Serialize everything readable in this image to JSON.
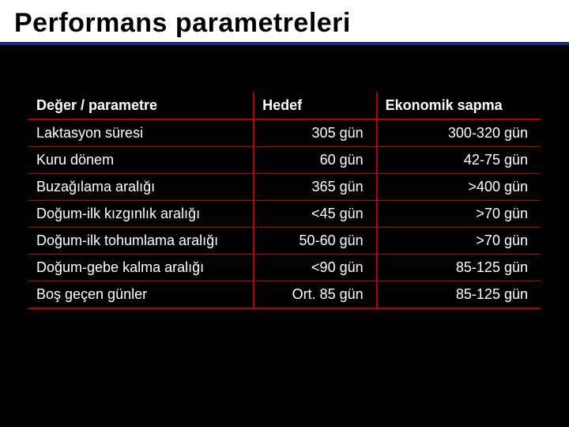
{
  "slide": {
    "title": "Performans parametreleri",
    "title_color": "#000000",
    "title_fontsize": 34,
    "underline_color": "#1a2b8a",
    "background_color": "#000000"
  },
  "table": {
    "border_color": "#c00000",
    "text_color": "#ffffff",
    "header_fontsize": 18,
    "cell_fontsize": 18,
    "columns": [
      {
        "label": "Değer / parametre",
        "align": "left",
        "width_pct": 44
      },
      {
        "label": "Hedef",
        "align": "right",
        "width_pct": 24
      },
      {
        "label": "Ekonomik sapma",
        "align": "right",
        "width_pct": 32
      }
    ],
    "rows": [
      {
        "param": "Laktasyon süresi",
        "target": "305 gün",
        "deviation": "300-320 gün"
      },
      {
        "param": "Kuru dönem",
        "target": "60 gün",
        "deviation": "42-75 gün"
      },
      {
        "param": "Buzağılama aralığı",
        "target": "365 gün",
        "deviation": ">400 gün"
      },
      {
        "param": "Doğum-ilk kızgınlık aralığı",
        "target": "<45 gün",
        "deviation": ">70 gün"
      },
      {
        "param": "Doğum-ilk tohumlama aralığı",
        "target": "50-60 gün",
        "deviation": ">70 gün"
      },
      {
        "param": "Doğum-gebe kalma aralığı",
        "target": "<90 gün",
        "deviation": "85-125 gün"
      },
      {
        "param": "Boş geçen günler",
        "target": "Ort. 85 gün",
        "deviation": "85-125 gün"
      }
    ]
  }
}
